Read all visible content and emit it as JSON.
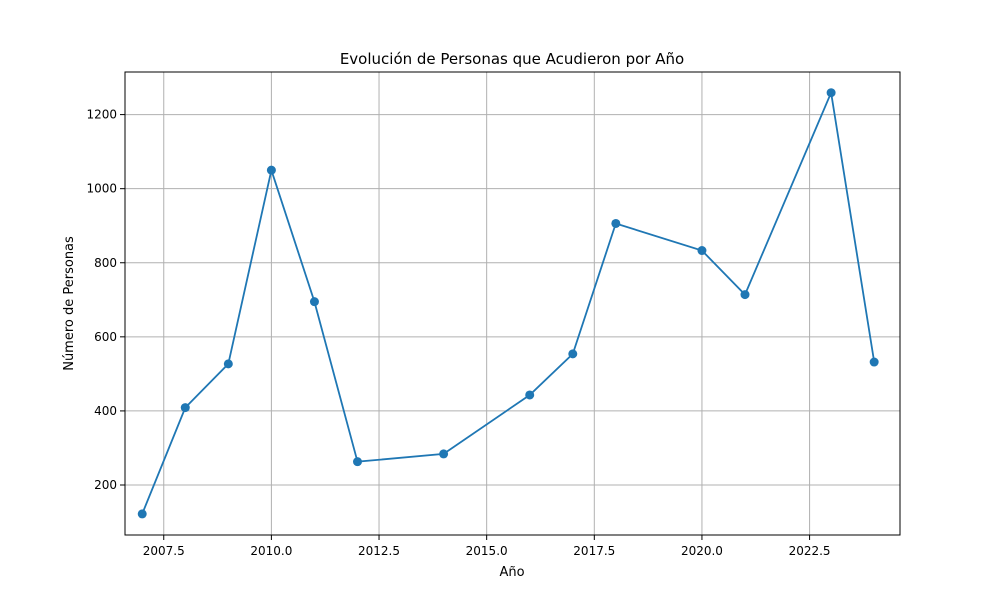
{
  "chart_data": {
    "type": "line",
    "title": "Evolución de Personas que Acudieron por Año",
    "xlabel": "Año",
    "ylabel": "Número de Personas",
    "xlim": [
      2006.6,
      2024.6
    ],
    "ylim": [
      65,
      1315
    ],
    "xticks": [
      2007.5,
      2010.0,
      2012.5,
      2015.0,
      2017.5,
      2020.0,
      2022.5
    ],
    "xtick_labels": [
      "2007.5",
      "2010.0",
      "2012.5",
      "2015.0",
      "2017.5",
      "2020.0",
      "2022.5"
    ],
    "yticks": [
      200,
      400,
      600,
      800,
      1000,
      1200
    ],
    "ytick_labels": [
      "200",
      "400",
      "600",
      "800",
      "1000",
      "1200"
    ],
    "grid": true,
    "series": [
      {
        "color": "#1f77b4",
        "x": [
          2007,
          2008,
          2009,
          2010,
          2011,
          2012,
          2014,
          2016,
          2017,
          2018,
          2020,
          2021,
          2023,
          2024
        ],
        "y": [
          122,
          409,
          527,
          1050,
          695,
          263,
          284,
          443,
          554,
          906,
          833,
          714,
          1259,
          532
        ]
      }
    ]
  }
}
